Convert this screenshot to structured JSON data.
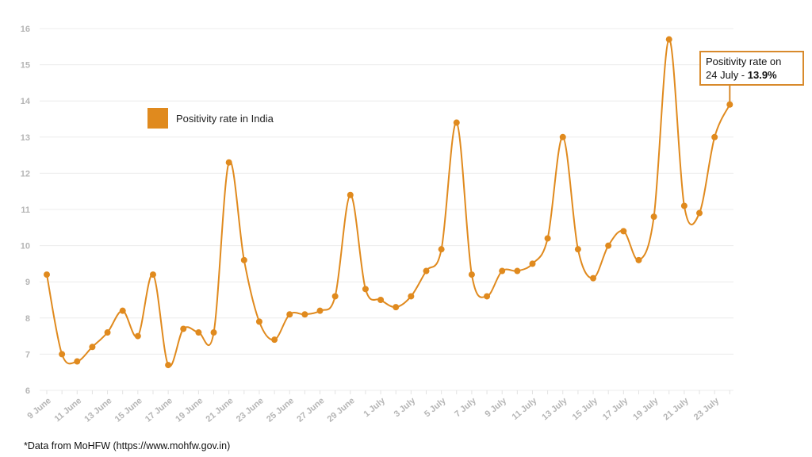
{
  "chart_data": {
    "type": "line",
    "title": "",
    "xlabel": "",
    "ylabel": "",
    "ylim": [
      6,
      16
    ],
    "yticks": [
      6,
      7,
      8,
      9,
      10,
      11,
      12,
      13,
      14,
      15,
      16
    ],
    "grid": true,
    "legend_placement": "top-left",
    "x": [
      "9 June",
      "10 June",
      "11 June",
      "12 June",
      "13 June",
      "14 June",
      "15 June",
      "16 June",
      "17 June",
      "18 June",
      "19 June",
      "20 June",
      "21 June",
      "22 June",
      "23 June",
      "24 June",
      "25 June",
      "26 June",
      "27 June",
      "28 June",
      "29 June",
      "30 June",
      "1 July",
      "2 July",
      "3 July",
      "4 July",
      "5 July",
      "6 July",
      "7 July",
      "8 July",
      "9 July",
      "10 July",
      "11 July",
      "12 July",
      "13 July",
      "14 July",
      "15 July",
      "16 July",
      "17 July",
      "18 July",
      "19 July",
      "20 July",
      "21 July",
      "22 July",
      "23 July",
      "24 July"
    ],
    "xtick_labels": [
      "9 June",
      "11 June",
      "13 June",
      "15 June",
      "17 June",
      "19 June",
      "21 June",
      "23 June",
      "25 June",
      "27 June",
      "29 June",
      "1 July",
      "3 July",
      "5 July",
      "7 July",
      "9 July",
      "11 July",
      "13 July",
      "15 July",
      "17 July",
      "19 July",
      "21 July",
      "23 July"
    ],
    "series": [
      {
        "name": "Positivity rate in India",
        "color": "#e08a1e",
        "values": [
          9.2,
          7.0,
          6.8,
          7.2,
          7.6,
          8.2,
          7.5,
          9.2,
          6.7,
          7.7,
          7.6,
          7.6,
          12.3,
          9.6,
          7.9,
          7.4,
          8.1,
          8.1,
          8.2,
          8.6,
          11.4,
          8.8,
          8.5,
          8.3,
          8.6,
          9.3,
          9.9,
          13.4,
          9.2,
          8.6,
          9.3,
          9.3,
          9.5,
          10.2,
          13.0,
          9.9,
          9.1,
          10.0,
          10.4,
          9.6,
          10.8,
          15.7,
          11.1,
          10.9,
          13.0,
          13.9
        ]
      }
    ],
    "annotation": {
      "line1": "Positivity rate on",
      "line2_prefix": "24 July - ",
      "line2_value": "13.9%"
    }
  },
  "footer": "*Data from MoHFW (https://www.mohfw.gov.in)"
}
